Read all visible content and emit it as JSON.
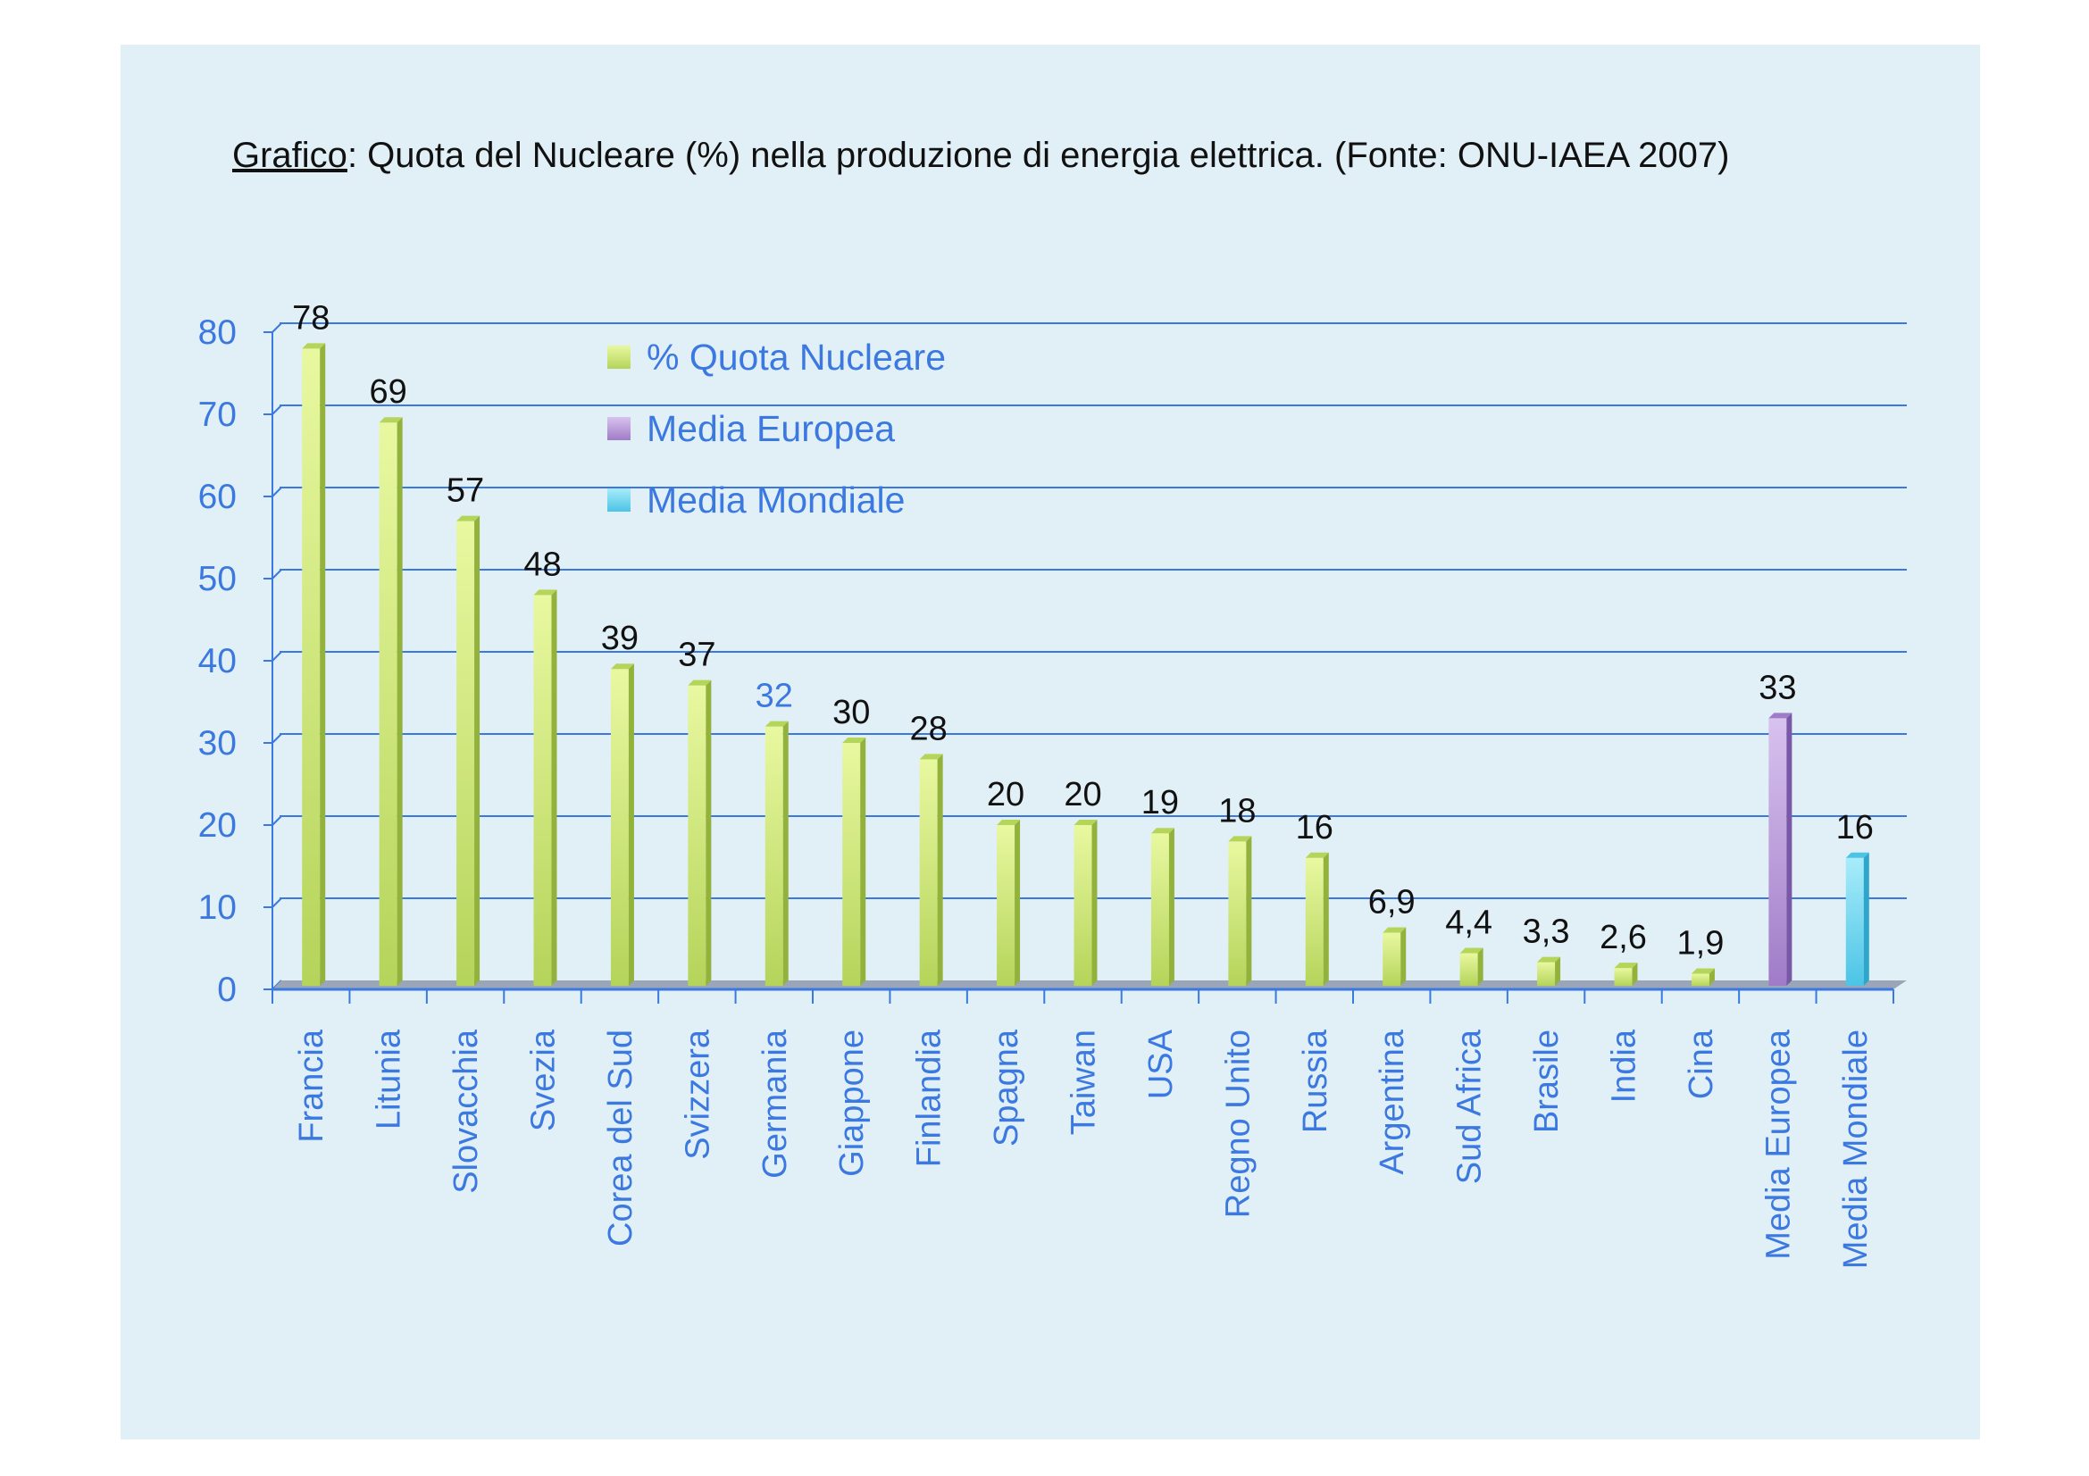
{
  "chart_data": {
    "type": "bar",
    "title_prefix": "Grafico",
    "title": ": Quota del Nucleare (%) nella produzione di energia elettrica. (Fonte: ONU-IAEA 2007)",
    "xlabel": "",
    "ylabel": "",
    "ylim": [
      0,
      80
    ],
    "yticks": [
      "0",
      "10",
      "20",
      "30",
      "40",
      "50",
      "60",
      "70",
      "80"
    ],
    "grid": true,
    "legend_position": "top-left",
    "categories": [
      "Francia",
      "Litunia",
      "Slovacchia",
      "Svezia",
      "Corea del Sud",
      "Svizzera",
      "Germania",
      "Giappone",
      "Finlandia",
      "Spagna",
      "Taiwan",
      "USA",
      "Regno Unito",
      "Russia",
      "Argentina",
      "Sud Africa",
      "Brasile",
      "India",
      "Cina",
      "Media Europea",
      "Media Mondiale"
    ],
    "values": [
      78,
      69,
      57,
      48,
      39,
      37,
      32,
      30,
      28,
      20,
      20,
      19,
      18,
      16,
      6.9,
      4.4,
      3.3,
      2.6,
      1.9,
      33,
      16
    ],
    "value_labels": [
      "78",
      "69",
      "57",
      "48",
      "39",
      "37",
      "32",
      "30",
      "28",
      "20",
      "20",
      "19",
      "18",
      "16",
      "6,9",
      "4,4",
      "3,3",
      "2,6",
      "1,9",
      "33",
      "16"
    ],
    "series_index": [
      0,
      0,
      0,
      0,
      0,
      0,
      0,
      0,
      0,
      0,
      0,
      0,
      0,
      0,
      0,
      0,
      0,
      0,
      0,
      1,
      2
    ],
    "highlighted_label_index": 6,
    "series": [
      {
        "name": "% Quota Nucleare",
        "color": "#b5d45a",
        "light": "#e8f8a0",
        "dark": "#93b23c"
      },
      {
        "name": "Media Europea",
        "color": "#a07cc8",
        "light": "#d8c2ee",
        "dark": "#7a58a8"
      },
      {
        "name": "Media Mondiale",
        "color": "#4cc4e6",
        "light": "#a8ecfa",
        "dark": "#2ea6cc"
      }
    ],
    "colors": {
      "axis": "#3b78e0",
      "label": "#111111",
      "background": "#e1f0f6"
    }
  }
}
